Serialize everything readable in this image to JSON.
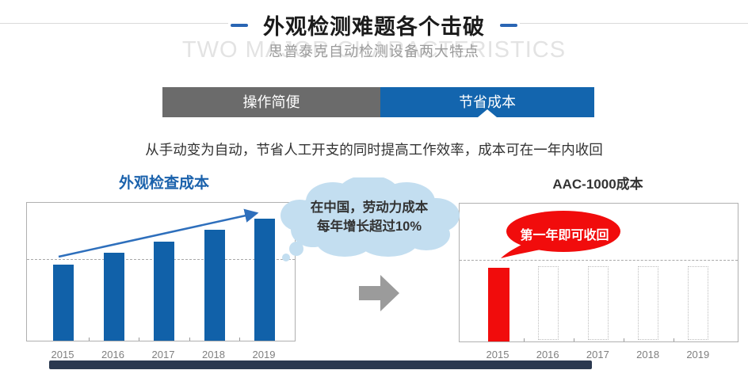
{
  "header": {
    "title": "外观检测难题各个击破",
    "subtitle": "思普泰克自动检测设备两大特点",
    "watermark": "TWO MAJOR CHARACTERISTICS",
    "accent_color": "#2a65b4"
  },
  "tabs": [
    {
      "label": "操作简便",
      "active": false,
      "bg": "#6b6b6b"
    },
    {
      "label": "节省成本",
      "active": true,
      "bg": "#1365ae"
    }
  ],
  "description": "从手动变为自动，节省人工开支的同时提高工作效率，成本可在一年内收回",
  "callouts": {
    "cloud": {
      "line1": "在中国，劳动力成本",
      "line2": "每年增长超过10%",
      "bg": "#c3def0"
    },
    "bubble": {
      "text": "第一年即可收回",
      "bg": "#f10c0c"
    }
  },
  "colors": {
    "bar_blue": "#1161a9",
    "bar_red": "#f10c0c",
    "trend_arrow_blue": "#2e6fbc",
    "transition_arrow_gray": "#9b9b9b",
    "tab_gray": "#6b6b6b",
    "tab_blue": "#1365ae"
  },
  "chart_data": [
    {
      "type": "bar",
      "title": "外观检查成本",
      "categories": [
        "2015",
        "2016",
        "2017",
        "2018",
        "2019"
      ],
      "values": [
        100,
        115,
        130,
        145,
        160
      ],
      "xlabel": "",
      "ylabel": "",
      "bar_color": "#1161a9",
      "grid": "single dashed horizontal baseline near first-year level",
      "annotations": [
        "rising blue trend arrow from 2015 bar top to above 2019 bar"
      ],
      "legend": "none",
      "axis_values_visible": false
    },
    {
      "type": "bar",
      "title": "AAC-1000成本",
      "categories": [
        "2015",
        "2016",
        "2017",
        "2018",
        "2019"
      ],
      "values": [
        96,
        0,
        0,
        0,
        0
      ],
      "ghost_values": [
        0,
        94,
        94,
        94,
        94
      ],
      "xlabel": "",
      "ylabel": "",
      "bar_color": "#f10c0c",
      "ghost_style": "dotted gray empty outline bars",
      "grid": "single dashed horizontal baseline just above bar top",
      "annotations": [
        "red speech bubble 第一年即可收回 pointing at 2015 bar"
      ],
      "legend": "none",
      "axis_values_visible": false
    }
  ]
}
